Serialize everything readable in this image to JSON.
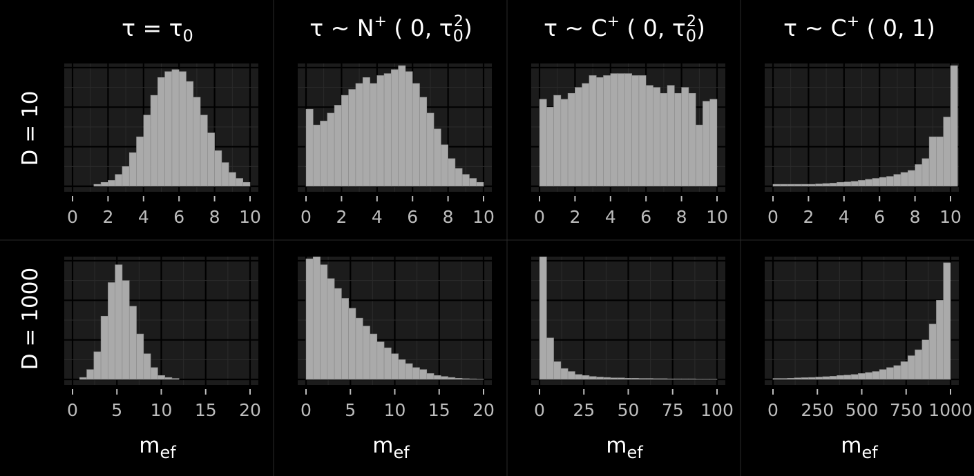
{
  "col_titles": [
    {
      "main": "τ  =  τ",
      "sub": "0",
      "sup": "",
      "tail": ""
    },
    {
      "main": "τ  ~  N",
      "sup": "+",
      "rest": " ( 0, τ",
      "sub": "0",
      "sup2": "2",
      "tail": ")"
    },
    {
      "main": "τ  ~  C",
      "sup": "+",
      "rest": " ( 0, τ",
      "sub": "0",
      "sup2": "2",
      "tail": ")"
    },
    {
      "main": "τ  ~  C",
      "sup": "+",
      "rest": " ( 0, 1)",
      "sub": "",
      "sup2": "",
      "tail": ""
    }
  ],
  "row_titles": [
    "D  =  10",
    "D  =  1000"
  ],
  "xlabel": {
    "main": "m",
    "sub": "ef"
  },
  "colors": {
    "background": "#000000",
    "panel": "#1c1c1c",
    "bar": "#aaaaaa",
    "text": "#ffffff",
    "tick": "#bdbdbd"
  },
  "chart_data": [
    {
      "type": "bar",
      "row": "D  =  10",
      "col": "τ  =  τ0",
      "xlim": [
        0,
        10
      ],
      "xticks": [
        0,
        2,
        4,
        6,
        8,
        10
      ],
      "ylim": [
        0,
        60
      ],
      "grid": true,
      "bin_edges_start": 0,
      "bin_width": 0.4,
      "values": [
        0,
        0,
        0,
        1,
        2,
        3,
        6,
        10,
        17,
        25,
        36,
        46,
        55,
        58,
        59,
        58,
        53,
        45,
        36,
        27,
        18,
        12,
        7,
        4,
        2
      ]
    },
    {
      "type": "bar",
      "row": "D  =  10",
      "col": "τ  ~  N+ ( 0, τ0²)",
      "xlim": [
        0,
        10
      ],
      "xticks": [
        0,
        2,
        4,
        6,
        8,
        10
      ],
      "ylim": [
        0,
        60
      ],
      "grid": true,
      "bin_edges_start": 0,
      "bin_width": 0.4,
      "values": [
        39,
        31,
        33,
        37,
        41,
        46,
        49,
        52,
        55,
        52,
        56,
        57,
        59,
        61,
        58,
        52,
        45,
        37,
        29,
        21,
        14,
        9,
        6,
        4,
        2
      ]
    },
    {
      "type": "bar",
      "row": "D  =  10",
      "col": "τ  ~  C+ ( 0, τ0²)",
      "xlim": [
        0,
        10
      ],
      "xticks": [
        0,
        2,
        4,
        6,
        8,
        10
      ],
      "ylim": [
        0,
        60
      ],
      "grid": true,
      "bin_edges_start": 0,
      "bin_width": 0.4,
      "values": [
        44,
        40,
        46,
        44,
        47,
        50,
        52,
        56,
        55,
        56,
        57,
        57,
        57,
        56,
        56,
        51,
        50,
        47,
        51,
        47,
        50,
        47,
        31,
        43,
        44
      ]
    },
    {
      "type": "bar",
      "row": "D  =  10",
      "col": "τ  ~  C+ (0, 1)",
      "xlim": [
        0,
        10
      ],
      "xticks": [
        0,
        2,
        4,
        6,
        8,
        10
      ],
      "ylim": [
        0,
        60
      ],
      "grid": true,
      "bin_edges_start": 0,
      "bin_width": 0.4,
      "values": [
        1,
        1,
        1,
        1,
        1,
        1,
        1.2,
        1.4,
        1.6,
        2,
        2.2,
        2.5,
        3,
        3.5,
        4,
        4.5,
        5,
        6,
        7,
        8,
        11,
        14,
        25,
        25,
        35,
        61
      ]
    },
    {
      "type": "bar",
      "row": "D  =  1000",
      "col": "τ  =  τ0",
      "xlim": [
        0,
        20
      ],
      "xticks": [
        0,
        5,
        10,
        15,
        20
      ],
      "ylim": [
        0,
        60
      ],
      "grid": true,
      "bin_edges_start": 0,
      "bin_width": 0.8,
      "values": [
        0,
        1,
        5,
        14,
        32,
        49,
        58,
        50,
        37,
        23,
        13,
        6,
        2,
        1,
        0.5
      ]
    },
    {
      "type": "bar",
      "row": "D  =  1000",
      "col": "τ  ~  N+ ( 0, τ0²)",
      "xlim": [
        0,
        20
      ],
      "xticks": [
        0,
        5,
        10,
        15,
        20
      ],
      "ylim": [
        0,
        60
      ],
      "grid": true,
      "bin_edges_start": 0,
      "bin_width": 0.8,
      "values": [
        61,
        62,
        58,
        51,
        46,
        41,
        36,
        31,
        27,
        23,
        19,
        16,
        13,
        10,
        8,
        6,
        5,
        3,
        2,
        1.5,
        1,
        0.6,
        0.4,
        0.3,
        0.2
      ]
    },
    {
      "type": "bar",
      "row": "D  =  1000",
      "col": "τ  ~  C+ ( 0, τ0²)",
      "xlim": [
        0,
        100
      ],
      "xticks": [
        0,
        25,
        50,
        75,
        100
      ],
      "ylim": [
        0,
        60
      ],
      "grid": true,
      "bin_edges_start": 0,
      "bin_width": 4,
      "values": [
        62,
        21,
        9,
        5.5,
        4,
        2.5,
        2,
        1.5,
        1.2,
        1,
        0.8,
        0.8,
        0.6,
        0.6,
        0.5,
        0.5,
        0.4,
        0.4,
        0.3,
        0.3,
        0.3,
        0.3,
        0.2,
        0.2,
        0.2
      ]
    },
    {
      "type": "bar",
      "row": "D  =  1000",
      "col": "τ  ~  C+ (0, 1)",
      "xlim": [
        0,
        1000
      ],
      "xticks": [
        0,
        250,
        500,
        750,
        1000
      ],
      "ylim": [
        0,
        60
      ],
      "grid": true,
      "bin_edges_start": 0,
      "bin_width": 40,
      "values": [
        0.5,
        0.5,
        0.6,
        0.8,
        0.9,
        1,
        1.2,
        1.4,
        1.6,
        2,
        2.2,
        2.5,
        3,
        3.5,
        4,
        5,
        6,
        7,
        9,
        12,
        15,
        20,
        28,
        40,
        59
      ]
    }
  ]
}
